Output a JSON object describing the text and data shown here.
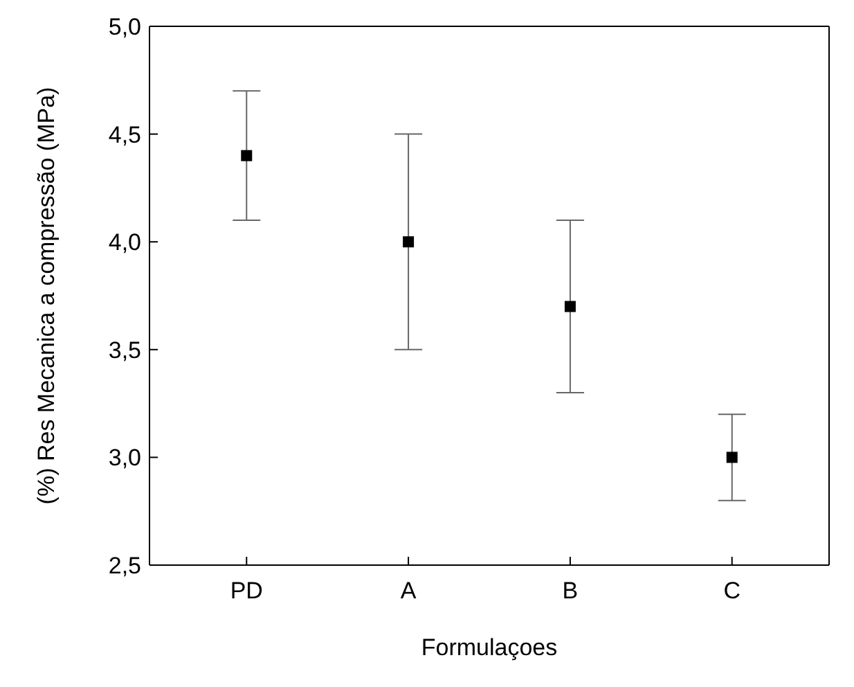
{
  "chart_data": {
    "type": "scatter",
    "xlabel": "Formulaçoes",
    "ylabel": "(%) Res Mecanica a compressão (MPa)",
    "categories": [
      "PD",
      "A",
      "B",
      "C"
    ],
    "series": [
      {
        "color": "#000000",
        "values": [
          4.4,
          4.0,
          3.7,
          3.0
        ],
        "errors": [
          0.3,
          0.5,
          0.4,
          0.2
        ]
      }
    ],
    "ylim": [
      2.5,
      5.0
    ],
    "yticks": [
      {
        "value": 2.5,
        "label": "2,5"
      },
      {
        "value": 3.0,
        "label": "3,0"
      },
      {
        "value": 3.5,
        "label": "3,5"
      },
      {
        "value": 4.0,
        "label": "4,0"
      },
      {
        "value": 4.5,
        "label": "4,5"
      },
      {
        "value": 5.0,
        "label": "5,0"
      }
    ],
    "marker": "square"
  }
}
